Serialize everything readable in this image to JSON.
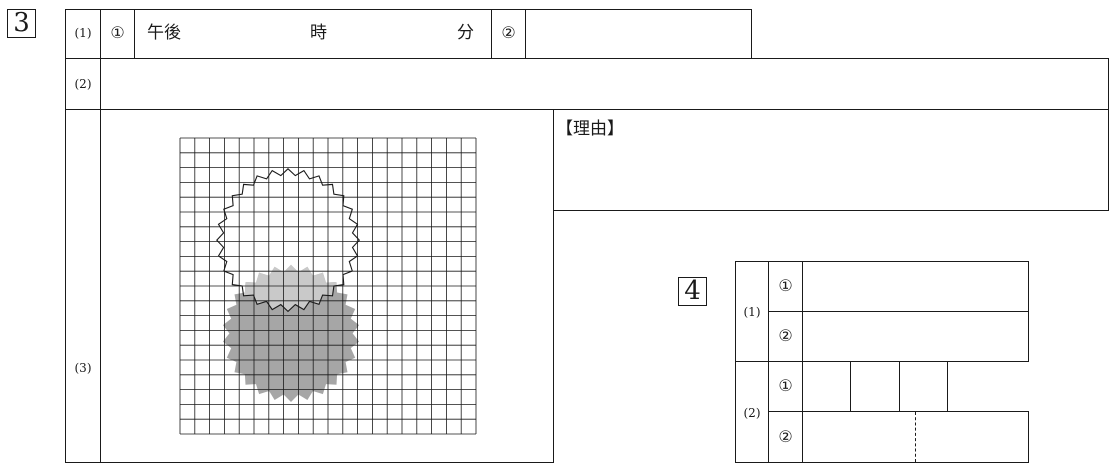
{
  "q3": {
    "number": "3",
    "row1": {
      "label": "(1)",
      "c1": "①",
      "afternoon": "午後",
      "hour": "時",
      "minute": "分",
      "c2": "②"
    },
    "row2": {
      "label": "(2)"
    },
    "row3": {
      "label": "(3)",
      "reason_label": "【理由】"
    }
  },
  "q4": {
    "number": "4",
    "p1": {
      "label": "(1)",
      "c1": "①",
      "c2": "②"
    },
    "p2": {
      "label": "(2)",
      "c1": "①",
      "c2": "②"
    }
  },
  "figure": {
    "grid_cols": 20,
    "grid_rows": 20,
    "circle_outline_color": "#1a1a1a",
    "circle_fill_dark": "#a6a6a6",
    "overlap_fill": "#c9c9c9"
  }
}
